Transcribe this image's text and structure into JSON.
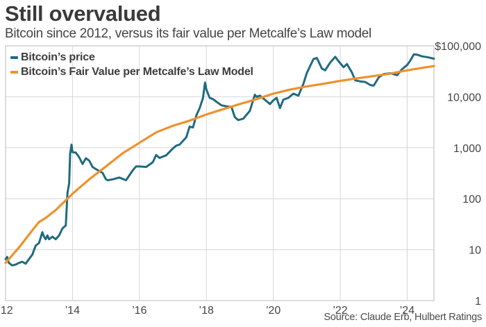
{
  "header": {
    "title": "Still overvalued",
    "subtitle": "Bitcoin since 2012, versus its fair value per Metcalfe’s Law model"
  },
  "footer": {
    "source": "Source: Claude Erb, Hulbert Ratings"
  },
  "colors": {
    "price": "#1f6b80",
    "fair_value": "#f0902a",
    "grid": "#d6d6d6",
    "axis": "#b9b9b9",
    "text": "#444444"
  },
  "chart_data": {
    "type": "line",
    "title": "Still overvalued",
    "subtitle": "Bitcoin since 2012, versus its fair value per Metcalfe’s Law model",
    "xlabel": "",
    "ylabel": "",
    "y_scale": "log",
    "ylim": [
      1,
      100000
    ],
    "xlim": [
      2012.0,
      2024.8
    ],
    "grid": true,
    "legend_position": "top-left",
    "x_ticks": [
      {
        "value": 2012,
        "label": "’12"
      },
      {
        "value": 2014,
        "label": "’14"
      },
      {
        "value": 2016,
        "label": "’16"
      },
      {
        "value": 2018,
        "label": "’18"
      },
      {
        "value": 2020,
        "label": "’20"
      },
      {
        "value": 2022,
        "label": "’22"
      },
      {
        "value": 2024,
        "label": "’24"
      }
    ],
    "y_ticks": [
      {
        "value": 100000,
        "label": "$100,000"
      },
      {
        "value": 10000,
        "label": "10,000"
      },
      {
        "value": 1000,
        "label": "1,000"
      },
      {
        "value": 100,
        "label": "100"
      },
      {
        "value": 10,
        "label": "10"
      },
      {
        "value": 1,
        "label": "1"
      }
    ],
    "series": [
      {
        "name": "Bitcoin’s price",
        "color": "#1f6b80",
        "x": [
          2012.0,
          2012.05,
          2012.1,
          2012.2,
          2012.3,
          2012.4,
          2012.5,
          2012.6,
          2012.7,
          2012.8,
          2012.9,
          2013.0,
          2013.1,
          2013.15,
          2013.2,
          2013.25,
          2013.3,
          2013.4,
          2013.5,
          2013.6,
          2013.7,
          2013.8,
          2013.85,
          2013.9,
          2013.93,
          2013.97,
          2014.0,
          2014.1,
          2014.2,
          2014.3,
          2014.4,
          2014.5,
          2014.6,
          2014.7,
          2014.8,
          2014.9,
          2015.0,
          2015.05,
          2015.2,
          2015.4,
          2015.6,
          2015.8,
          2015.9,
          2016.0,
          2016.2,
          2016.4,
          2016.5,
          2016.6,
          2016.8,
          2017.0,
          2017.1,
          2017.2,
          2017.4,
          2017.5,
          2017.6,
          2017.7,
          2017.8,
          2017.9,
          2017.96,
          2018.0,
          2018.1,
          2018.2,
          2018.3,
          2018.45,
          2018.6,
          2018.75,
          2018.85,
          2018.95,
          2019.1,
          2019.3,
          2019.45,
          2019.5,
          2019.6,
          2019.8,
          2019.9,
          2020.0,
          2020.1,
          2020.2,
          2020.3,
          2020.45,
          2020.6,
          2020.75,
          2020.9,
          2021.0,
          2021.1,
          2021.2,
          2021.3,
          2021.45,
          2021.55,
          2021.7,
          2021.85,
          2021.95,
          2022.1,
          2022.2,
          2022.35,
          2022.45,
          2022.6,
          2022.75,
          2022.9,
          2023.0,
          2023.15,
          2023.3,
          2023.5,
          2023.7,
          2023.85,
          2024.0,
          2024.1,
          2024.2,
          2024.3,
          2024.45,
          2024.6,
          2024.7,
          2024.8
        ],
        "values": [
          6.5,
          7.2,
          5.5,
          4.9,
          5.1,
          5.5,
          5.8,
          5.3,
          6.5,
          8,
          12,
          13.5,
          22,
          18,
          16,
          19,
          16,
          18,
          16,
          19,
          26,
          30,
          130,
          200,
          760,
          1150,
          820,
          800,
          650,
          480,
          620,
          560,
          420,
          380,
          350,
          320,
          240,
          230,
          240,
          260,
          230,
          360,
          430,
          430,
          420,
          520,
          720,
          630,
          710,
          970,
          1100,
          1150,
          1600,
          2600,
          2500,
          4300,
          6000,
          9500,
          19000,
          14000,
          9500,
          9000,
          8000,
          6800,
          6500,
          6300,
          4000,
          3500,
          3700,
          5300,
          11000,
          10000,
          10500,
          8200,
          7200,
          8500,
          9500,
          6000,
          8800,
          9500,
          11500,
          10500,
          18000,
          29000,
          40000,
          55000,
          58000,
          36000,
          33000,
          47000,
          61000,
          50000,
          38000,
          44000,
          30000,
          21000,
          20000,
          19500,
          17000,
          16500,
          24000,
          28000,
          29000,
          26500,
          35000,
          42000,
          52000,
          68000,
          67000,
          62000,
          60000,
          58000,
          56000
        ]
      },
      {
        "name": "Bitcoin’s Fair Value per Metcalfe’s Law Model",
        "color": "#f0902a",
        "x": [
          2012.0,
          2012.4,
          2012.8,
          2013.0,
          2013.2,
          2013.5,
          2014.0,
          2014.5,
          2015.0,
          2015.5,
          2016.0,
          2016.5,
          2017.0,
          2017.5,
          2018.0,
          2018.5,
          2019.0,
          2019.5,
          2020.0,
          2020.5,
          2021.0,
          2021.5,
          2022.0,
          2022.5,
          2023.0,
          2023.5,
          2024.0,
          2024.5,
          2024.8
        ],
        "values": [
          5.5,
          11,
          24,
          35,
          42,
          60,
          125,
          240,
          430,
          780,
          1250,
          2000,
          2700,
          3400,
          4500,
          5700,
          7200,
          9000,
          11500,
          13800,
          16000,
          18000,
          20500,
          23000,
          25500,
          28500,
          33000,
          37500,
          40000
        ]
      }
    ]
  }
}
